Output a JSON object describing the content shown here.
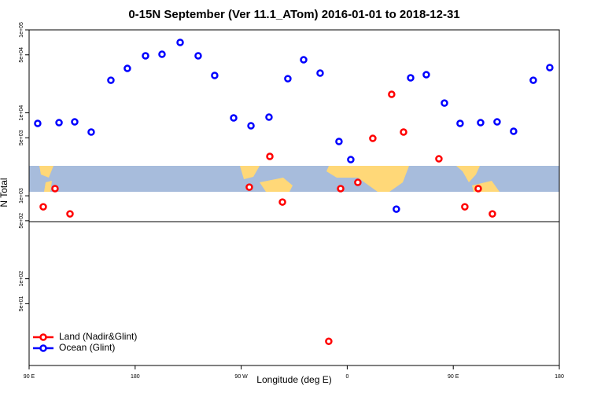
{
  "chart_data": {
    "type": "scatter",
    "title": "0-15N September (Ver 11.1_ATom)   2016-01-01 to 2018-12-31",
    "xlabel": "Longitude (deg E)",
    "ylabel": "N Total",
    "xlim": [
      90,
      540
    ],
    "xticks": [
      {
        "value": 90,
        "label": "90 E"
      },
      180,
      {
        "value": 270,
        "label": "90 W"
      },
      {
        "value": 360,
        "label": "0"
      },
      {
        "value": 450,
        "label": "90 E"
      },
      {
        "value": 540,
        "label": "180"
      }
    ],
    "ylim": [
      9,
      100000
    ],
    "log_y": true,
    "yticks": [
      {
        "value": 100000,
        "label": "1e+05"
      },
      {
        "value": 50000,
        "label": "5e+04"
      },
      {
        "value": 10000,
        "label": "1e+04"
      },
      {
        "value": 5000,
        "label": "5e+03"
      },
      {
        "value": 1000,
        "label": "1e+03"
      },
      {
        "value": 500,
        "label": "5e+02"
      },
      {
        "value": 100,
        "label": "1e+02"
      },
      {
        "value": 50,
        "label": "5e+01"
      }
    ],
    "legend": "lower left",
    "series": [
      {
        "name": "Land (Nadir&Glint)",
        "color": "#ff0000",
        "x": [
          102,
          112,
          124.7,
          276.9,
          294.3,
          305,
          344.3,
          354.4,
          369,
          381.7,
          397.7,
          407.8,
          437.8,
          459.8,
          471.2,
          483.2
        ],
        "values": [
          736,
          1220,
          605,
          1270,
          2980,
          840,
          17.6,
          1220,
          1450,
          4920,
          16700,
          5860,
          2790,
          736,
          1220,
          605
        ]
      },
      {
        "name": "Ocean (Glint)",
        "color": "#0000ff",
        "x": [
          97.3,
          115.4,
          128.7,
          142.7,
          159.4,
          173.4,
          188.8,
          202.8,
          218.2,
          233.5,
          247.5,
          263.6,
          278.3,
          293.6,
          309.6,
          323,
          337,
          353,
          363,
          401.7,
          413.8,
          427.1,
          442.5,
          455.8,
          473.2,
          487.2,
          501.2,
          517.9,
          531.9
        ],
        "values": [
          7450,
          7610,
          7780,
          5860,
          24700,
          34300,
          48700,
          50800,
          70500,
          48700,
          28200,
          8680,
          6980,
          8870,
          25800,
          43600,
          30100,
          4510,
          2730,
          690,
          26400,
          28800,
          13100,
          7450,
          7610,
          7780,
          5990,
          24700,
          35100
        ]
      }
    ]
  }
}
